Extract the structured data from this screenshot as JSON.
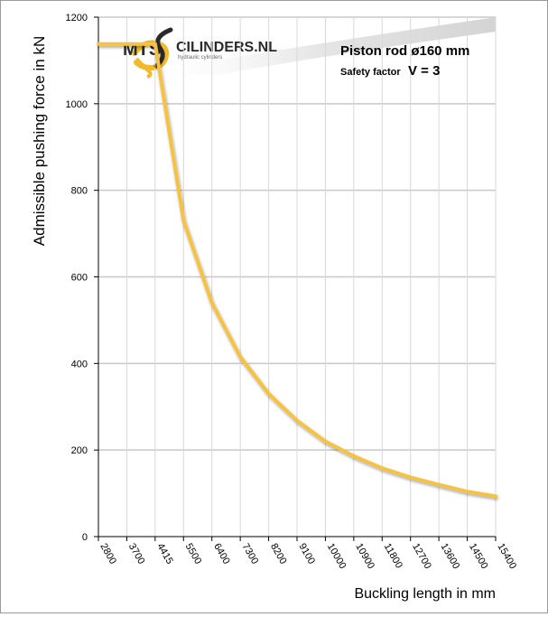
{
  "chart_data": {
    "type": "line",
    "title": "Piston rod ø160 mm",
    "subtitle_label": "Safety factor",
    "subtitle_value": "V = 3",
    "xlabel": "Buckling length in mm",
    "ylabel": "Admissible pushing force in kN",
    "categories": [
      "2800",
      "3700",
      "4415",
      "5500",
      "6400",
      "7300",
      "8200",
      "9100",
      "10000",
      "10900",
      "11800",
      "12700",
      "13600",
      "14500",
      "15400"
    ],
    "ylim": [
      0,
      1200
    ],
    "yticks": [
      0,
      200,
      400,
      600,
      800,
      1000,
      1200
    ],
    "grid": true,
    "series": [
      {
        "values": [
          1138,
          1138,
          1138,
          730,
          540,
          415,
          330,
          268,
          220,
          186,
          158,
          137,
          120,
          104,
          93
        ]
      }
    ]
  },
  "logo": {
    "text_left": "MTS",
    "text_right": "CILINDERS.NL",
    "tagline": "hydraulic cylinders"
  },
  "colors": {
    "line": "#f5c242",
    "grid": "#c8c8c8",
    "axis": "#000000",
    "text": "#000000"
  }
}
